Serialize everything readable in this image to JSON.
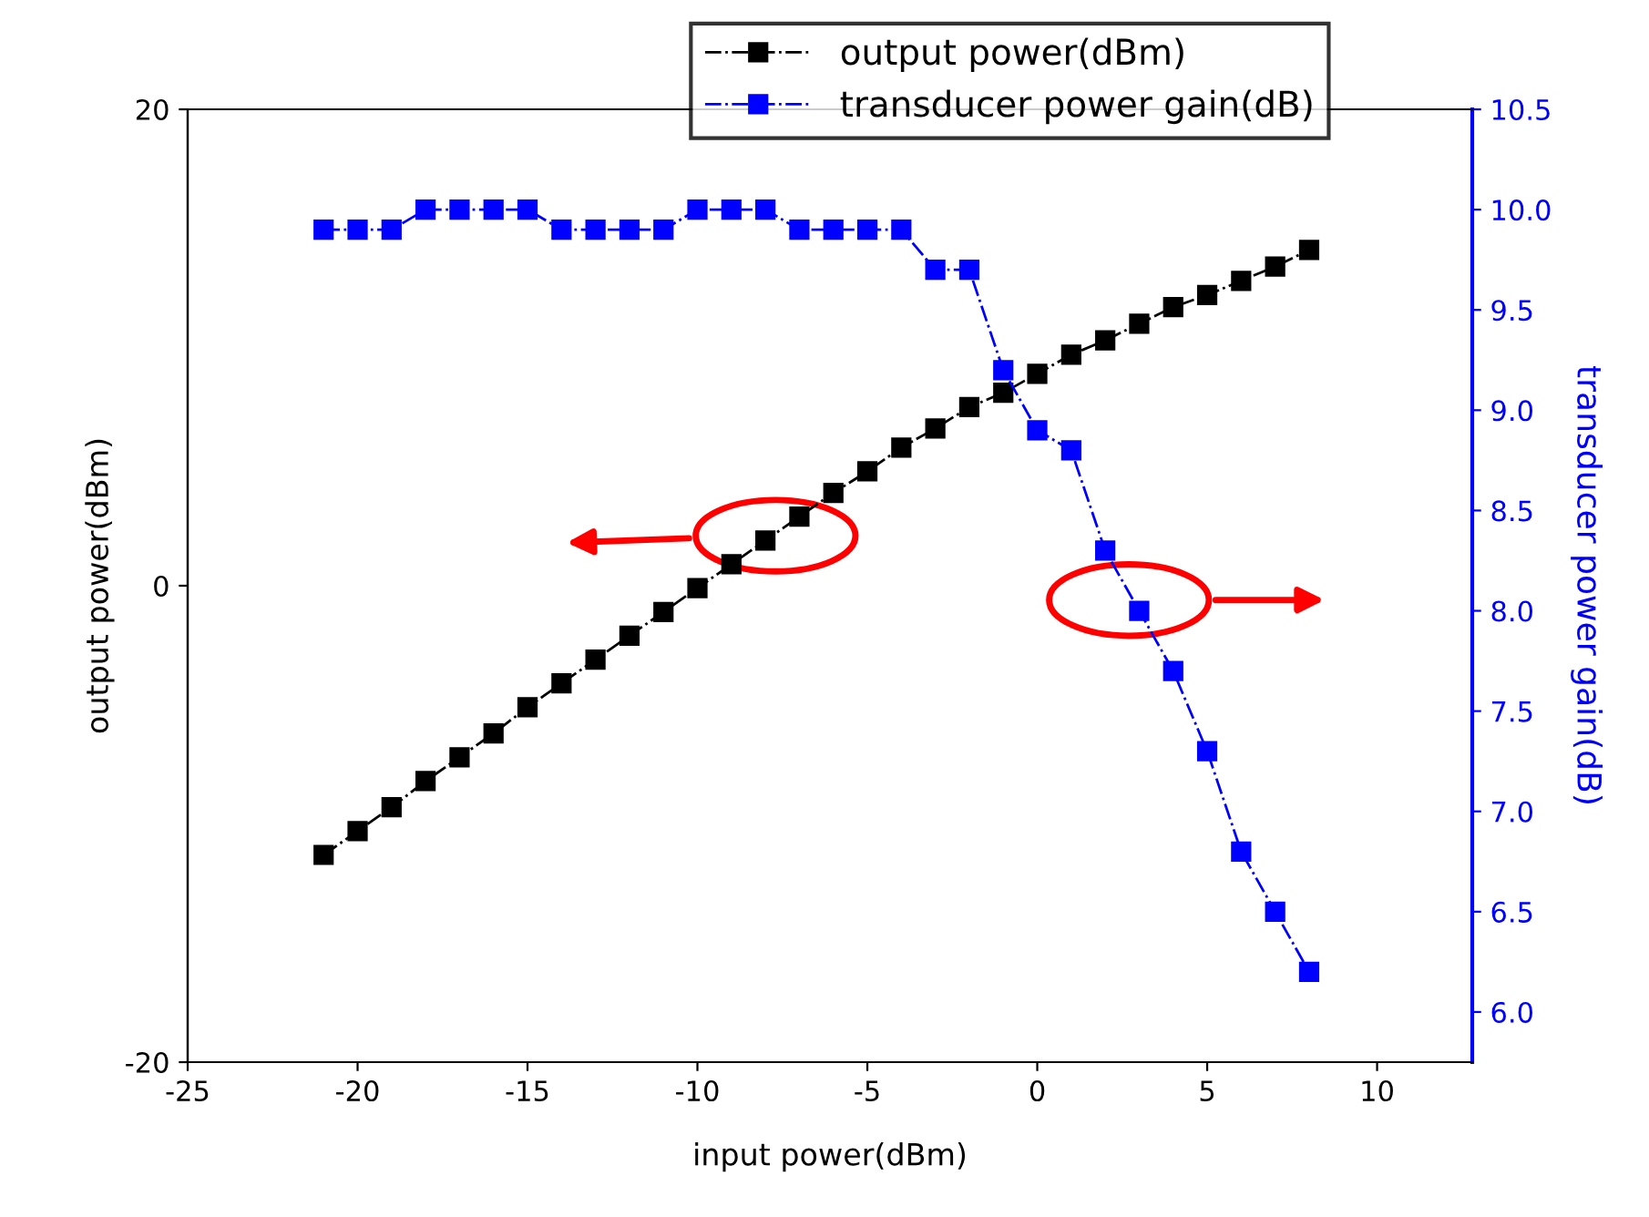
{
  "chart_data": {
    "type": "line",
    "xlabel": "input power(dBm)",
    "ylabel": "output power(dBm)",
    "y2label": "transducer power gain(dB)",
    "x": [
      -21,
      -20,
      -19,
      -18,
      -17,
      -16,
      -15,
      -14,
      -13,
      -12,
      -11,
      -10,
      -9,
      -8,
      -7,
      -6,
      -5,
      -4,
      -3,
      -2,
      -1,
      0,
      1,
      2,
      3,
      4,
      5,
      6,
      7,
      8
    ],
    "series": [
      {
        "name": "output power(dBm)",
        "color": "#000000",
        "values": [
          -11.3,
          -10.3,
          -9.3,
          -8.2,
          -7.2,
          -6.2,
          -5.1,
          -4.1,
          -3.1,
          -2.1,
          -1.1,
          -0.1,
          0.9,
          1.9,
          2.9,
          3.9,
          4.8,
          5.8,
          6.6,
          7.5,
          8.1,
          8.9,
          9.7,
          10.3,
          11.0,
          11.7,
          12.2,
          12.8,
          13.4,
          14.1
        ]
      },
      {
        "name": "transducer power gain(dB)",
        "color": "#0000ff",
        "axis": "y2",
        "values": [
          9.9,
          9.9,
          9.9,
          10.0,
          10.0,
          10.0,
          10.0,
          9.9,
          9.9,
          9.9,
          9.9,
          10.0,
          10.0,
          10.0,
          9.9,
          9.9,
          9.9,
          9.9,
          9.7,
          9.7,
          9.2,
          8.9,
          8.8,
          8.3,
          8.0,
          7.7,
          7.3,
          6.8,
          6.5,
          6.2
        ]
      }
    ],
    "xlim": [
      -25,
      12.8
    ],
    "xticks": [
      -25,
      -20,
      -15,
      -10,
      -5,
      0,
      5,
      10
    ],
    "ylim": [
      -20,
      20
    ],
    "yticks": [
      -20,
      0,
      20
    ],
    "y2lim": [
      5.75,
      10.5
    ],
    "y2ticks": [
      {
        "value": 6,
        "label": "6.0"
      },
      6.5,
      {
        "value": 7,
        "label": "7.0"
      },
      7.5,
      {
        "value": 8,
        "label": "8.0"
      },
      8.5,
      {
        "value": 9,
        "label": "9.0"
      },
      9.5,
      {
        "value": 10,
        "label": "10.0"
      },
      10.5
    ],
    "marker": "square",
    "line_style": "dashed",
    "legend": "top",
    "grid": false
  }
}
